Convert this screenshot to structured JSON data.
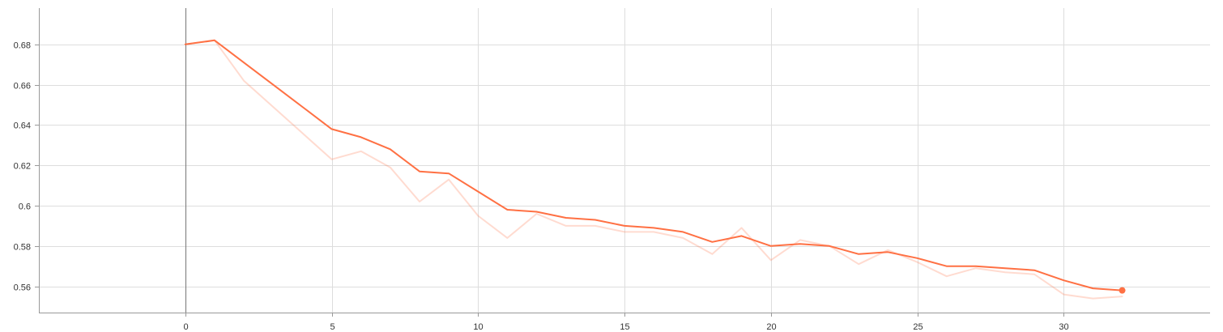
{
  "chart_data": {
    "type": "line",
    "title": "",
    "xlabel": "",
    "ylabel": "",
    "xlim": [
      -5,
      35
    ],
    "ylim": [
      0.547,
      0.698
    ],
    "grid": true,
    "x_ticks": [
      0,
      5,
      10,
      15,
      20,
      25,
      30
    ],
    "x_tick_labels": [
      "0",
      "5",
      "10",
      "15",
      "20",
      "25",
      "30"
    ],
    "y_ticks": [
      0.56,
      0.58,
      0.6,
      0.62,
      0.64,
      0.66,
      0.68
    ],
    "y_tick_labels": [
      "0.56",
      "0.58",
      "0.6",
      "0.62",
      "0.64",
      "0.66",
      "0.68"
    ],
    "series": [
      {
        "role": "raw",
        "color": "#ff7043",
        "opacity": 0.25,
        "x": [
          0,
          1,
          2,
          3,
          4,
          5,
          6,
          7,
          8,
          9,
          10,
          11,
          12,
          13,
          14,
          15,
          16,
          17,
          18,
          19,
          20,
          21,
          22,
          23,
          24,
          25,
          26,
          27,
          28,
          29,
          30,
          31,
          32
        ],
        "y": [
          0.68,
          0.682,
          0.662,
          0.649,
          0.636,
          0.623,
          0.627,
          0.619,
          0.602,
          0.613,
          0.595,
          0.584,
          0.596,
          0.59,
          0.59,
          0.587,
          0.587,
          0.584,
          0.576,
          0.589,
          0.573,
          0.583,
          0.58,
          0.571,
          0.578,
          0.572,
          0.565,
          0.569,
          0.567,
          0.566,
          0.556,
          0.554,
          0.555
        ]
      },
      {
        "role": "smoothed",
        "color": "#ff7043",
        "opacity": 1,
        "x": [
          0,
          1,
          2,
          3,
          4,
          5,
          6,
          7,
          8,
          9,
          10,
          11,
          12,
          13,
          14,
          15,
          16,
          17,
          18,
          19,
          20,
          21,
          22,
          23,
          24,
          25,
          26,
          27,
          28,
          29,
          30,
          31,
          32
        ],
        "y": [
          0.68,
          0.682,
          0.671,
          0.66,
          0.649,
          0.638,
          0.634,
          0.628,
          0.617,
          0.616,
          0.607,
          0.598,
          0.597,
          0.594,
          0.593,
          0.59,
          0.589,
          0.587,
          0.582,
          0.585,
          0.58,
          0.581,
          0.58,
          0.576,
          0.577,
          0.574,
          0.57,
          0.57,
          0.569,
          0.568,
          0.563,
          0.559,
          0.558
        ]
      }
    ]
  }
}
